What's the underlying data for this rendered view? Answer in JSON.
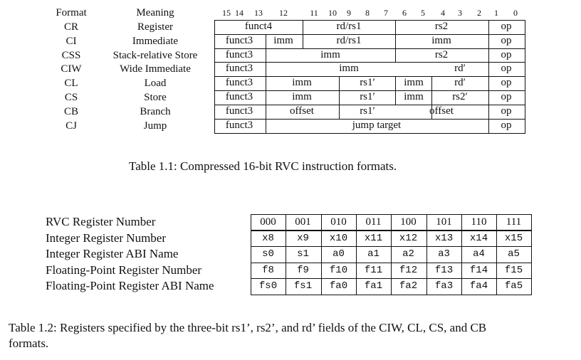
{
  "table1": {
    "header": {
      "format": "Format",
      "meaning": "Meaning"
    },
    "bit_labels": [
      "15",
      "14",
      "13",
      "12",
      "11",
      "10",
      "9",
      "8",
      "7",
      "6",
      "5",
      "4",
      "3",
      "2",
      "1",
      "0"
    ],
    "rows": [
      {
        "format": "CR",
        "meaning": "Register",
        "fields": [
          "funct4",
          "rd/rs1",
          "rs2",
          "op"
        ]
      },
      {
        "format": "CI",
        "meaning": "Immediate",
        "fields": [
          "funct3",
          "imm",
          "rd/rs1",
          "imm",
          "op"
        ]
      },
      {
        "format": "CSS",
        "meaning": "Stack-relative Store",
        "fields": [
          "funct3",
          "imm",
          "rs2",
          "op"
        ]
      },
      {
        "format": "CIW",
        "meaning": "Wide Immediate",
        "fields": [
          "funct3",
          "imm",
          "rd′",
          "op"
        ]
      },
      {
        "format": "CL",
        "meaning": "Load",
        "fields": [
          "funct3",
          "imm",
          "rs1′",
          "imm",
          "rd′",
          "op"
        ]
      },
      {
        "format": "CS",
        "meaning": "Store",
        "fields": [
          "funct3",
          "imm",
          "rs1′",
          "imm",
          "rs2′",
          "op"
        ]
      },
      {
        "format": "CB",
        "meaning": "Branch",
        "fields": [
          "funct3",
          "offset",
          "rs1′",
          "offset",
          "op"
        ]
      },
      {
        "format": "CJ",
        "meaning": "Jump",
        "fields": [
          "funct3",
          "jump target",
          "op"
        ]
      }
    ],
    "caption": "Table 1.1: Compressed 16-bit RVC instruction formats."
  },
  "table2": {
    "row_labels": [
      "RVC Register Number",
      "Integer Register Number",
      "Integer Register ABI Name",
      "Floating-Point Register Number",
      "Floating-Point Register ABI Name"
    ],
    "rows": [
      [
        "000",
        "001",
        "010",
        "011",
        "100",
        "101",
        "110",
        "111"
      ],
      [
        "x8",
        "x9",
        "x10",
        "x11",
        "x12",
        "x13",
        "x14",
        "x15"
      ],
      [
        "s0",
        "s1",
        "a0",
        "a1",
        "a2",
        "a3",
        "a4",
        "a5"
      ],
      [
        "f8",
        "f9",
        "f10",
        "f11",
        "f12",
        "f13",
        "f14",
        "f15"
      ],
      [
        "fs0",
        "fs1",
        "fa0",
        "fa1",
        "fa2",
        "fa3",
        "fa4",
        "fa5"
      ]
    ],
    "caption_line1": "Table 1.2: Registers specified by the three-bit rs1’, rs2’, and rd’ fields of the CIW, CL, CS, and CB",
    "caption_line2": "formats."
  }
}
